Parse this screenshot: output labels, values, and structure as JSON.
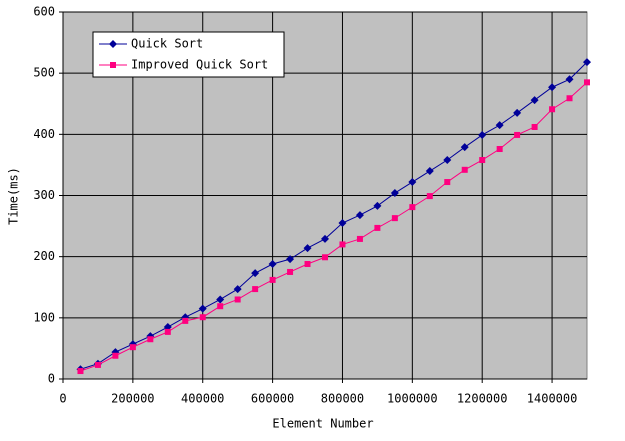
{
  "chart_data": {
    "type": "line",
    "x_label": "Element Number",
    "y_label": "Time(ms)",
    "x": [
      50000,
      100000,
      150000,
      200000,
      250000,
      300000,
      350000,
      400000,
      450000,
      500000,
      550000,
      600000,
      650000,
      700000,
      750000,
      800000,
      850000,
      900000,
      950000,
      1000000,
      1050000,
      1100000,
      1150000,
      1200000,
      1250000,
      1300000,
      1350000,
      1400000,
      1450000,
      1500000
    ],
    "series": [
      {
        "name": "Quick Sort",
        "color": "#000099",
        "marker": "diamond",
        "values": [
          16,
          25,
          44,
          57,
          70,
          85,
          101,
          115,
          130,
          147,
          173,
          188,
          196,
          214,
          229,
          255,
          268,
          283,
          304,
          322,
          340,
          358,
          379,
          399,
          415,
          435,
          456,
          477,
          490,
          518
        ]
      },
      {
        "name": "Improved Quick Sort",
        "color": "#ff0080",
        "marker": "square",
        "values": [
          13,
          23,
          38,
          52,
          65,
          77,
          95,
          101,
          119,
          130,
          147,
          162,
          175,
          188,
          199,
          220,
          229,
          247,
          263,
          281,
          299,
          322,
          342,
          358,
          376,
          399,
          412,
          441,
          459,
          485
        ]
      }
    ],
    "xlim": [
      0,
      1500000
    ],
    "xticks": [
      0,
      200000,
      400000,
      600000,
      800000,
      1000000,
      1200000,
      1400000
    ],
    "ylim": [
      0,
      600
    ],
    "yticks": [
      0,
      100,
      200,
      300,
      400,
      500,
      600
    ],
    "grid": true,
    "legend": "top-left"
  }
}
